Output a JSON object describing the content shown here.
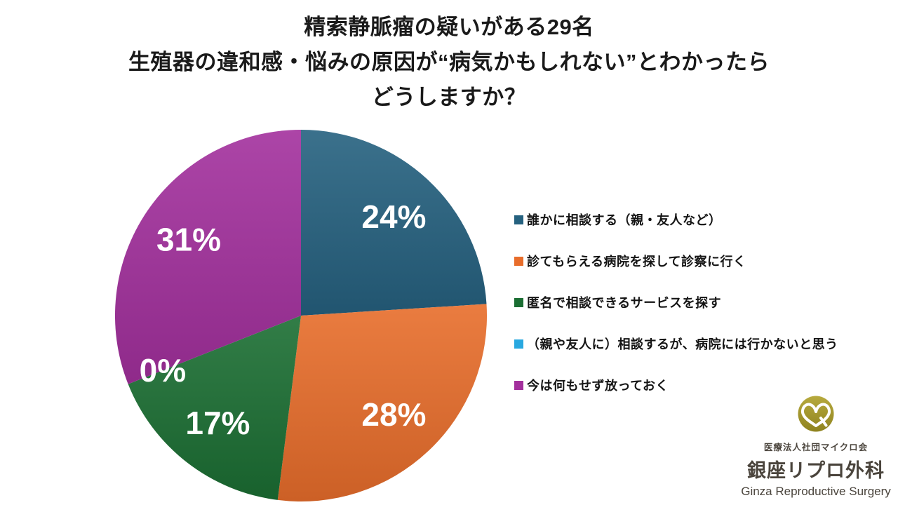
{
  "title": {
    "line1": "精索静脈瘤の疑いがある29名",
    "line2": "生殖器の違和感・悩みの原因が“病気かもしれない”とわかったら",
    "line3": "どうしますか？"
  },
  "chart_data": {
    "type": "pie",
    "title": "精索静脈瘤の疑いがある29名 生殖器の違和感・悩みの原因が“病気かもしれない”とわかったら どうしますか？",
    "total_respondents": 29,
    "start_angle_deg": 0,
    "direction": "clockwise",
    "legend_position": "right",
    "series": [
      {
        "label": "誰かに相談する（親・友人など）",
        "percent": 24,
        "percent_label": "24%",
        "color": "#25617F"
      },
      {
        "label": "診てもらえる病院を探して診察に行く",
        "percent": 28,
        "percent_label": "28%",
        "color": "#E86D2B"
      },
      {
        "label": "匿名で相談できるサービスを探す",
        "percent": 17,
        "percent_label": "17%",
        "color": "#1B6E33"
      },
      {
        "label": "（親や友人に）相談するが、病院には行かないと思う",
        "percent": 0,
        "percent_label": "0%",
        "color": "#29A8E0"
      },
      {
        "label": "今は何もせず放っておく",
        "percent": 31,
        "percent_label": "31%",
        "color": "#A3309D"
      }
    ]
  },
  "logo": {
    "monogram": "GR",
    "circle_color": "#A89B2E",
    "org_small": "医療法人社団マイクロ会",
    "org_main": "銀座リプロ外科",
    "org_en": "Ginza Reproductive Surgery"
  }
}
